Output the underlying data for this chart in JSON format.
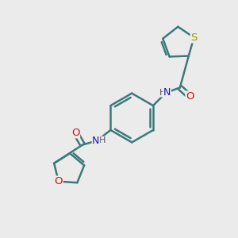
{
  "background_color": "#ebebeb",
  "bond_color": "#3d7a7a",
  "N_color": "#1414cc",
  "O_color": "#cc1414",
  "S_color": "#999900",
  "bond_width": 1.8,
  "font_size_atom": 8.5,
  "figsize": [
    3.0,
    3.0
  ],
  "dpi": 100,
  "xlim": [
    0,
    10
  ],
  "ylim": [
    0,
    10
  ]
}
